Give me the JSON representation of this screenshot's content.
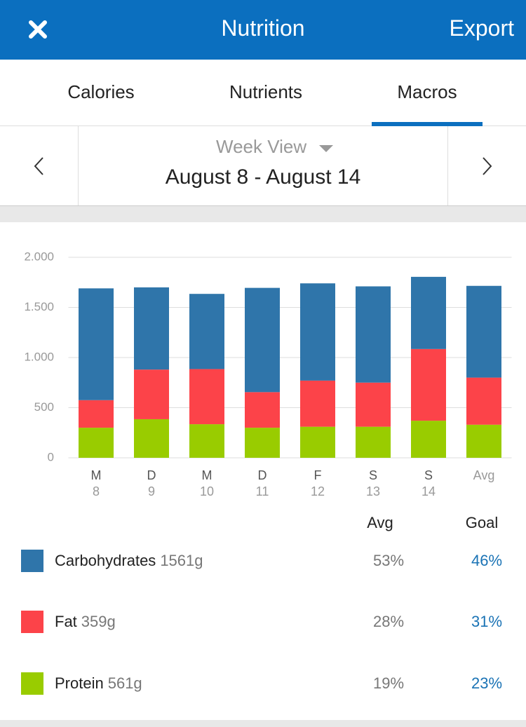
{
  "header": {
    "title": "Nutrition",
    "action": "Export"
  },
  "tabs": [
    "Calories",
    "Nutrients",
    "Macros"
  ],
  "week_selector": {
    "view": "Week View",
    "range": "August 8 - August 14"
  },
  "chart_data": {
    "type": "bar",
    "stacked": true,
    "categories": [
      "M",
      "D",
      "M",
      "D",
      "F",
      "S",
      "S",
      "Avg"
    ],
    "day_numbers": [
      8,
      9,
      10,
      11,
      12,
      13,
      14,
      null
    ],
    "series": [
      {
        "name": "Carbohydrates",
        "color": "#2f75aa",
        "values": [
          1115,
          820,
          750,
          1040,
          970,
          960,
          720,
          915
        ]
      },
      {
        "name": "Fat",
        "color": "#fc4349",
        "values": [
          275,
          495,
          550,
          355,
          460,
          440,
          715,
          470
        ]
      },
      {
        "name": "Protein",
        "color": "#99cc00",
        "values": [
          300,
          385,
          335,
          300,
          310,
          310,
          370,
          330
        ]
      }
    ],
    "ylim": [
      0,
      2000
    ],
    "yticks": [
      0,
      500,
      {
        "value": 1000,
        "label": "1.000"
      },
      {
        "value": 1500,
        "label": "1.500"
      },
      {
        "value": 2000,
        "label": "2.000"
      }
    ],
    "grid": true
  },
  "macros_table": {
    "columns": [
      "Avg",
      "Goal"
    ],
    "rows": [
      {
        "amount": "1561g",
        "avg": "53%",
        "goal": "46%"
      },
      {
        "amount": "359g",
        "avg": "28%",
        "goal": "31%"
      },
      {
        "amount": "561g",
        "avg": "19%",
        "goal": "23%"
      }
    ]
  }
}
